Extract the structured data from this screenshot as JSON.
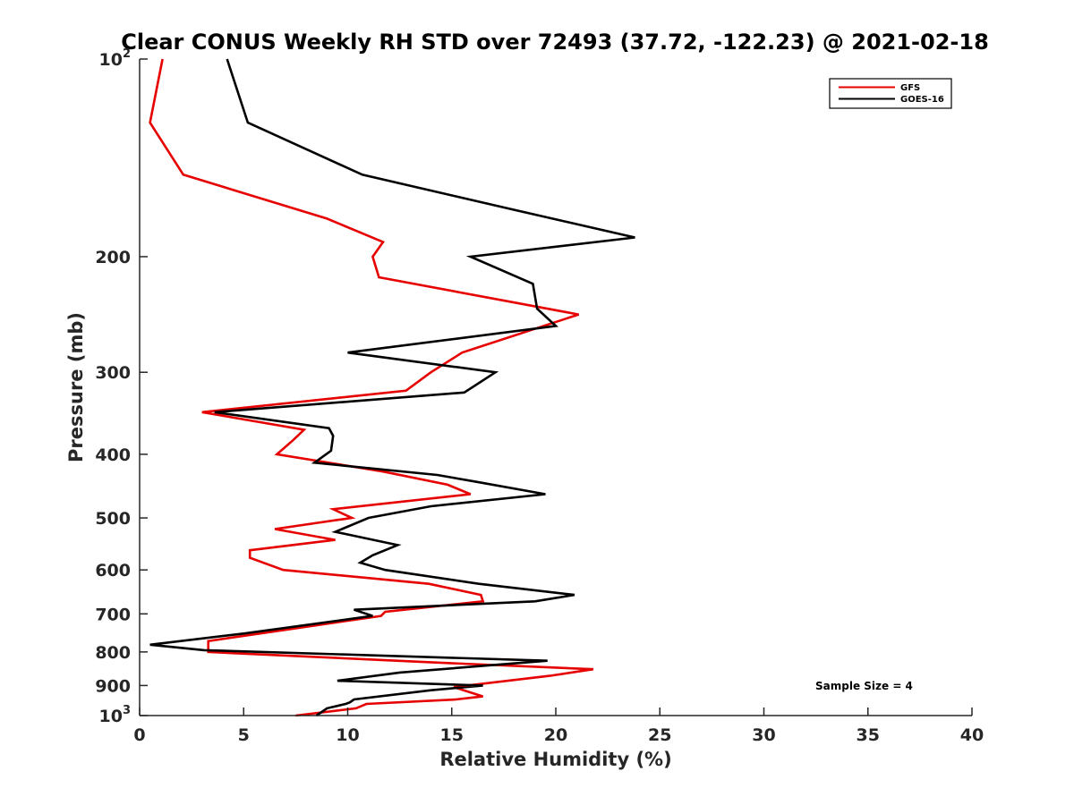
{
  "chart_data": {
    "type": "line",
    "title": "Clear CONUS Weekly RH STD over 72493 (37.72, -122.23) @ 2021-02-18",
    "xlabel": "Relative Humidity (%)",
    "ylabel": "Pressure (mb)",
    "xlim": [
      0,
      40
    ],
    "ylim": [
      100,
      1000
    ],
    "yscale": "log",
    "y_reversed": true,
    "grid": false,
    "legend_position": "top-right",
    "x_ticks": [
      {
        "value": 0,
        "label": "0"
      },
      {
        "value": 5,
        "label": "5"
      },
      {
        "value": 10,
        "label": "10"
      },
      {
        "value": 15,
        "label": "15"
      },
      {
        "value": 20,
        "label": "20"
      },
      {
        "value": 25,
        "label": "25"
      },
      {
        "value": 30,
        "label": "30"
      },
      {
        "value": 35,
        "label": "35"
      },
      {
        "value": 40,
        "label": "40"
      }
    ],
    "y_ticks": [
      {
        "value": 100,
        "base": "10",
        "exp": "2"
      },
      {
        "value": 200,
        "label": "200"
      },
      {
        "value": 300,
        "label": "300"
      },
      {
        "value": 400,
        "label": "400"
      },
      {
        "value": 500,
        "label": "500"
      },
      {
        "value": 600,
        "label": "600"
      },
      {
        "value": 700,
        "label": "700"
      },
      {
        "value": 800,
        "label": "800"
      },
      {
        "value": 900,
        "label": "900"
      },
      {
        "value": 1000,
        "base": "10",
        "exp": "3"
      }
    ],
    "annotation": "Sample Size = 4",
    "series": [
      {
        "name": "GFS",
        "color": "#e60000",
        "points": [
          [
            1.1,
            100
          ],
          [
            0.5,
            125
          ],
          [
            2.1,
            150
          ],
          [
            9.0,
            175
          ],
          [
            11.7,
            190
          ],
          [
            11.2,
            200
          ],
          [
            11.5,
            215
          ],
          [
            21.1,
            245
          ],
          [
            15.5,
            280
          ],
          [
            14.0,
            300
          ],
          [
            12.8,
            320
          ],
          [
            3.0,
            345
          ],
          [
            7.9,
            367
          ],
          [
            7.4,
            380
          ],
          [
            6.6,
            400
          ],
          [
            11.7,
            425
          ],
          [
            14.8,
            445
          ],
          [
            15.9,
            460
          ],
          [
            9.3,
            485
          ],
          [
            10.2,
            500
          ],
          [
            6.5,
            520
          ],
          [
            9.4,
            540
          ],
          [
            5.3,
            560
          ],
          [
            5.3,
            575
          ],
          [
            6.9,
            600
          ],
          [
            13.9,
            630
          ],
          [
            16.4,
            655
          ],
          [
            16.5,
            670
          ],
          [
            11.8,
            695
          ],
          [
            11.6,
            705
          ],
          [
            6.4,
            745
          ],
          [
            3.3,
            770
          ],
          [
            3.3,
            800
          ],
          [
            14.1,
            830
          ],
          [
            21.8,
            850
          ],
          [
            19.7,
            870
          ],
          [
            15.1,
            905
          ],
          [
            16.5,
            935
          ],
          [
            15.2,
            945
          ],
          [
            10.9,
            960
          ],
          [
            10.4,
            975
          ],
          [
            7.5,
            1000
          ]
        ]
      },
      {
        "name": "GOES-16",
        "color": "#000000",
        "points": [
          [
            4.2,
            100
          ],
          [
            5.2,
            125
          ],
          [
            10.7,
            150
          ],
          [
            18.1,
            170
          ],
          [
            23.8,
            187
          ],
          [
            15.9,
            200
          ],
          [
            18.9,
            220
          ],
          [
            19.1,
            240
          ],
          [
            20.0,
            255
          ],
          [
            10.0,
            280
          ],
          [
            17.1,
            300
          ],
          [
            15.6,
            322
          ],
          [
            3.6,
            345
          ],
          [
            9.1,
            365
          ],
          [
            9.3,
            375
          ],
          [
            9.2,
            395
          ],
          [
            8.4,
            412
          ],
          [
            14.3,
            430
          ],
          [
            16.1,
            440
          ],
          [
            19.5,
            460
          ],
          [
            14.0,
            480
          ],
          [
            11.0,
            500
          ],
          [
            9.4,
            525
          ],
          [
            12.4,
            550
          ],
          [
            11.2,
            570
          ],
          [
            10.6,
            585
          ],
          [
            11.8,
            600
          ],
          [
            16.3,
            630
          ],
          [
            20.9,
            655
          ],
          [
            19.0,
            670
          ],
          [
            10.3,
            690
          ],
          [
            11.2,
            705
          ],
          [
            5.0,
            750
          ],
          [
            0.5,
            780
          ],
          [
            3.1,
            795
          ],
          [
            19.6,
            825
          ],
          [
            12.5,
            860
          ],
          [
            9.5,
            885
          ],
          [
            16.5,
            900
          ],
          [
            14.0,
            915
          ],
          [
            10.3,
            945
          ],
          [
            10.1,
            955
          ],
          [
            9.9,
            960
          ],
          [
            9.0,
            975
          ],
          [
            8.5,
            1000
          ]
        ]
      }
    ]
  }
}
